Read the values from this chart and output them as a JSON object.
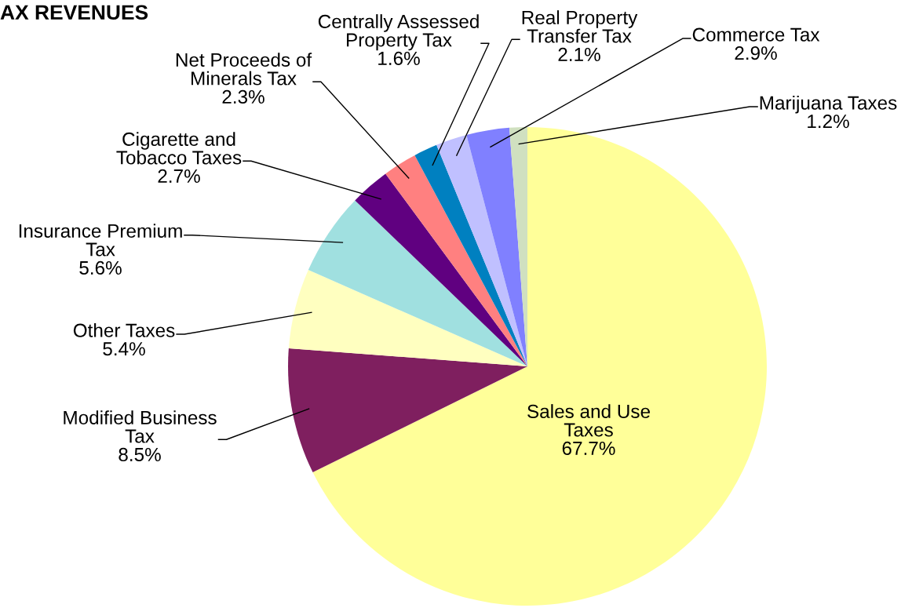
{
  "chart_data": {
    "type": "pie",
    "title": "AX REVENUES",
    "categories": [
      "Sales and Use\nTaxes",
      "Modified Business\nTax",
      "Other Taxes",
      "Insurance Premium\nTax",
      "Cigarette and\nTobacco Taxes",
      "Net Proceeds of\nMinerals Tax",
      "Centrally Assessed\nProperty Tax",
      "Real Property\nTransfer Tax",
      "Commerce Tax",
      "Marijuana Taxes"
    ],
    "values": [
      67.7,
      8.5,
      5.4,
      5.6,
      2.7,
      2.3,
      1.6,
      2.1,
      2.9,
      1.2
    ],
    "value_labels": [
      "67.7%",
      "8.5%",
      "5.4%",
      "5.6%",
      "2.7%",
      "2.3%",
      "1.6%",
      "2.1%",
      "2.9%",
      "1.2%"
    ],
    "colors": [
      "#ffff99",
      "#7f1f5f",
      "#ffffc0",
      "#a0e0e0",
      "#600080",
      "#ff8080",
      "#0080c0",
      "#c0c0ff",
      "#8080ff",
      "#d0e0c0"
    ],
    "legend": false
  }
}
